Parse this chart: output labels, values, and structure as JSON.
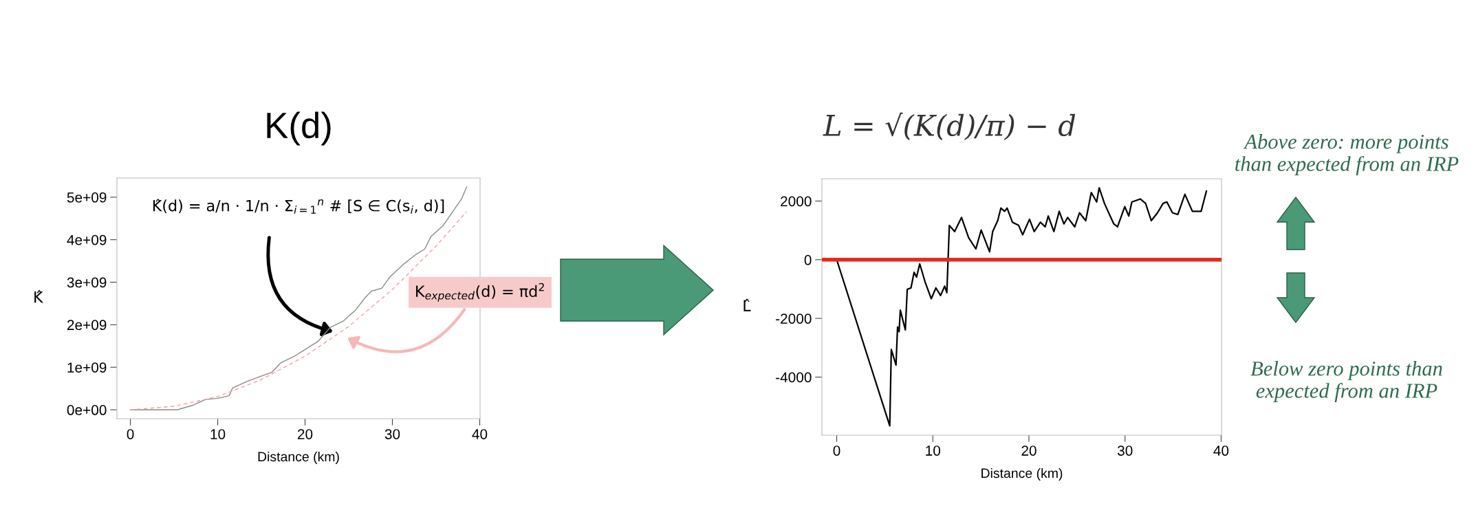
{
  "chart_data": [
    {
      "type": "line",
      "title": "K(d)",
      "xlabel": "Distance (km)",
      "ylabel": "K̂",
      "xlim": [
        -1.54,
        40.04
      ],
      "xticks": [
        0,
        10,
        20,
        30,
        40
      ],
      "ylim": [
        -210000000,
        5450000000
      ],
      "yticks": [
        {
          "value": 0,
          "label": "0e+00"
        },
        {
          "value": 1000000000,
          "label": "1e+09"
        },
        {
          "value": 2000000000,
          "label": "2e+09"
        },
        {
          "value": 3000000000,
          "label": "3e+09"
        },
        {
          "value": 4000000000,
          "label": "4e+09"
        },
        {
          "value": 5000000000,
          "label": "5e+09"
        }
      ],
      "grid": false,
      "legend": false,
      "series": [
        {
          "color": "#8a8a8a",
          "line_style": "solid",
          "x": [
            0,
            5.4,
            7.2,
            8.6,
            10,
            11.3,
            11.7,
            13.3,
            14.7,
            16.2,
            17.2,
            18.7,
            20.1,
            21.5,
            22.9,
            24.4,
            25.8,
            26.9,
            27.6,
            28.8,
            29.7,
            31.2,
            32.6,
            33.7,
            34.4,
            35.8,
            36.9,
            37.9,
            38.5
          ],
          "values": [
            0,
            0,
            110000000,
            240000000,
            270000000,
            330000000,
            510000000,
            660000000,
            770000000,
            880000000,
            1100000000,
            1250000000,
            1430000000,
            1610000000,
            1940000000,
            2090000000,
            2350000000,
            2640000000,
            2790000000,
            2860000000,
            3120000000,
            3410000000,
            3640000000,
            3780000000,
            4070000000,
            4330000000,
            4660000000,
            4950000000,
            5240000000
          ]
        },
        {
          "color": "#f4a0a0",
          "line_style": "dashed",
          "x": [
            0,
            5,
            10,
            15,
            20,
            25,
            30,
            35,
            38.5
          ],
          "values": [
            0,
            80000000,
            310000000,
            710000000,
            1260000000,
            1960000000,
            2830000000,
            3850000000,
            4660000000
          ]
        }
      ],
      "annotations": [
        "K̂(d) = a/n · 1/n · Σ$_{i=1}$$^{n}$ # [S ∈ C(s$_{i}$, d)]",
        "K$_{expected}$(d) = πd$^{2}$"
      ]
    },
    {
      "type": "line",
      "title": "L = √(K(d)/π) − d",
      "xlabel": "Distance (km)",
      "ylabel": "L̂",
      "xlim": [
        -1.54,
        40.04
      ],
      "xticks": [
        0,
        10,
        20,
        30,
        40
      ],
      "ylim": [
        -5980,
        2760
      ],
      "yticks": [
        -4000,
        -2000,
        0,
        2000
      ],
      "grid": false,
      "legend": false,
      "series": [
        {
          "color": "#000000",
          "line_style": "solid",
          "x": [
            0,
            5.52,
            5.68,
            6.17,
            6.33,
            6.49,
            6.62,
            7.14,
            7.34,
            7.73,
            8.05,
            8.31,
            8.64,
            9.19,
            9.84,
            10.32,
            10.81,
            11.23,
            11.46,
            11.72,
            12.27,
            12.99,
            13.73,
            14.48,
            15.03,
            15.91,
            16.23,
            16.75,
            17.08,
            17.47,
            17.73,
            18.28,
            18.93,
            19.35,
            20.06,
            20.55,
            21.2,
            21.69,
            22.01,
            22.6,
            23.15,
            23.64,
            24.03,
            24.77,
            25.26,
            25.91,
            26.49,
            27.05,
            27.31,
            27.86,
            28.83,
            29.22,
            29.97,
            30.39,
            30.71,
            31.59,
            32.14,
            32.73,
            33.38,
            33.96,
            34.35,
            34.94,
            35.49,
            36.23,
            37.01,
            37.92,
            38.25,
            38.47
          ],
          "values": [
            0,
            -5660,
            -3060,
            -3590,
            -2290,
            -2450,
            -1720,
            -2390,
            -1010,
            -960,
            -430,
            -590,
            -140,
            -750,
            -1330,
            -960,
            -1220,
            -900,
            -1120,
            1170,
            960,
            1440,
            750,
            370,
            1010,
            270,
            960,
            1330,
            1760,
            1650,
            1760,
            1280,
            1170,
            850,
            1380,
            960,
            1280,
            1120,
            1490,
            960,
            1650,
            1220,
            1440,
            1120,
            1600,
            1330,
            2290,
            1970,
            2450,
            1920,
            1220,
            1120,
            1810,
            1490,
            1970,
            2070,
            1920,
            1330,
            1600,
            1920,
            1970,
            1600,
            1540,
            2230,
            1650,
            1650,
            2070,
            2340
          ]
        }
      ],
      "ref_lines": [
        {
          "axis": "y",
          "value": 0,
          "color": "#e8281e",
          "line_style": "solid"
        }
      ],
      "annotations": [
        "Above zero: more points than expected from an IRP",
        "Below zero points than expected from an IRP"
      ]
    }
  ]
}
